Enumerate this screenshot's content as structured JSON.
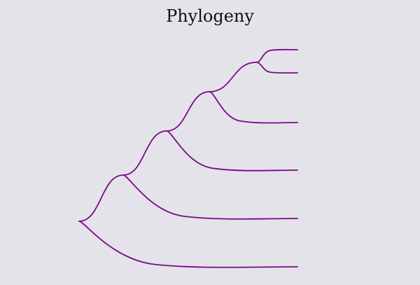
{
  "diagram": {
    "title": "Phylogeny",
    "type": "phylogenetic-tree",
    "branch_color": "#7a0a86",
    "background_color": "#e4e3ea",
    "tree": {
      "id": "root",
      "children": [
        {
          "id": "leaf-1"
        },
        {
          "id": "node-2",
          "children": [
            {
              "id": "leaf-2"
            },
            {
              "id": "node-3",
              "children": [
                {
                  "id": "leaf-3"
                },
                {
                  "id": "node-4",
                  "children": [
                    {
                      "id": "leaf-4"
                    },
                    {
                      "id": "node-5",
                      "children": [
                        {
                          "id": "leaf-5"
                        },
                        {
                          "id": "leaf-6"
                        }
                      ]
                    }
                  ]
                }
              ]
            }
          ]
        }
      ]
    }
  }
}
